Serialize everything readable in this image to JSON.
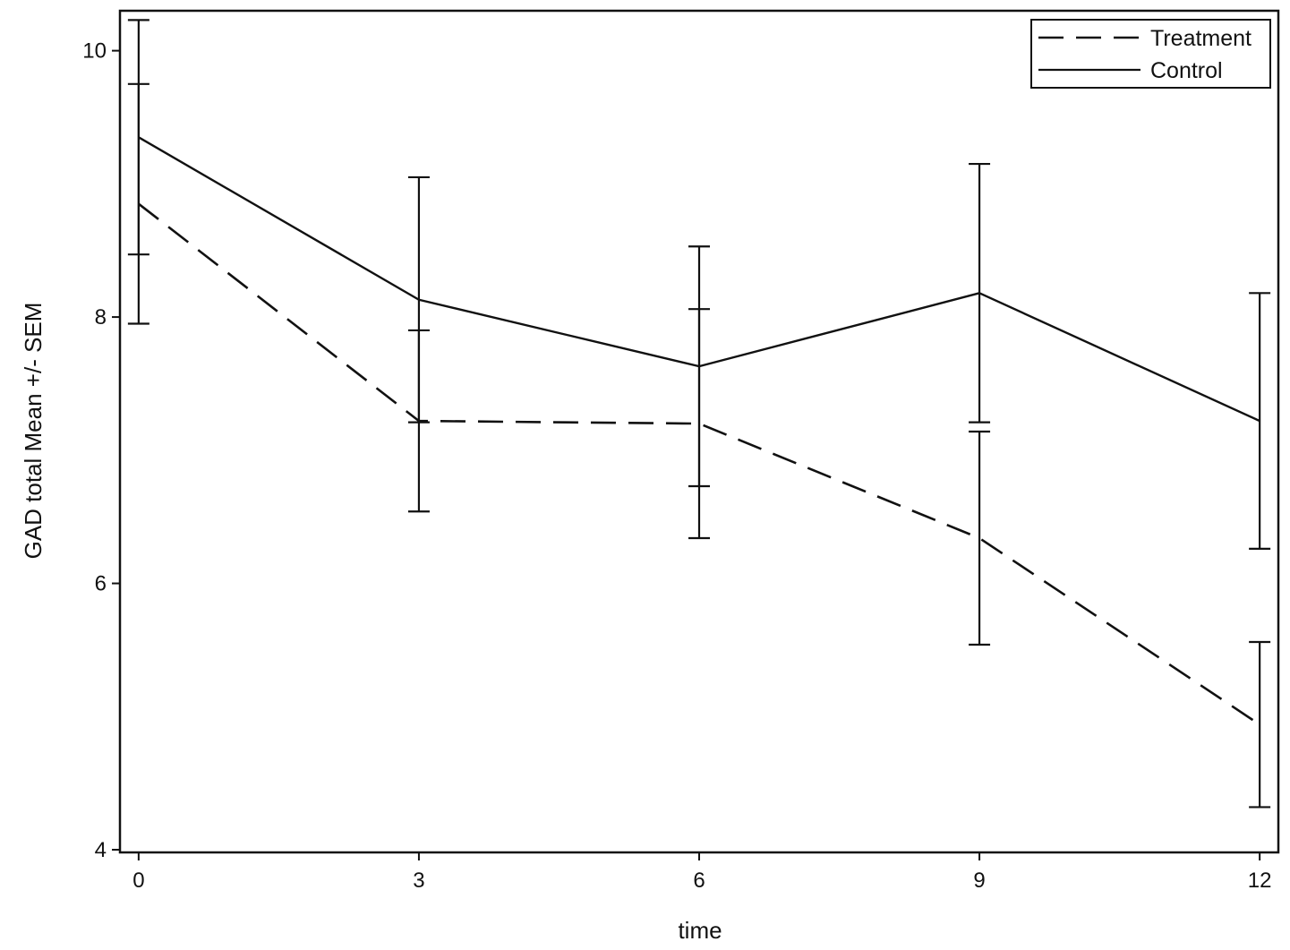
{
  "chart_data": {
    "type": "line",
    "title": "",
    "xlabel": "time",
    "ylabel": "GAD total Mean +/- SEM",
    "x": [
      0,
      3,
      6,
      9,
      12
    ],
    "xticks": [
      "0",
      "3",
      "6",
      "9",
      "12"
    ],
    "xlim": [
      -0.2,
      12.2
    ],
    "yticks": [
      "4",
      "6",
      "8",
      "10"
    ],
    "ylim": [
      3.98,
      10.3
    ],
    "grid": false,
    "legend_position": "top-right",
    "series": [
      {
        "name": "Treatment",
        "line_style": "dashed",
        "color": "#111111",
        "values": [
          8.85,
          7.22,
          7.2,
          6.34,
          4.94
        ],
        "sem": [
          0.9,
          0.68,
          0.86,
          0.8,
          0.62
        ]
      },
      {
        "name": "Control",
        "line_style": "solid",
        "color": "#111111",
        "values": [
          9.35,
          8.13,
          7.63,
          8.18,
          7.22
        ],
        "sem": [
          0.88,
          0.92,
          0.9,
          0.97,
          0.96
        ]
      }
    ]
  }
}
